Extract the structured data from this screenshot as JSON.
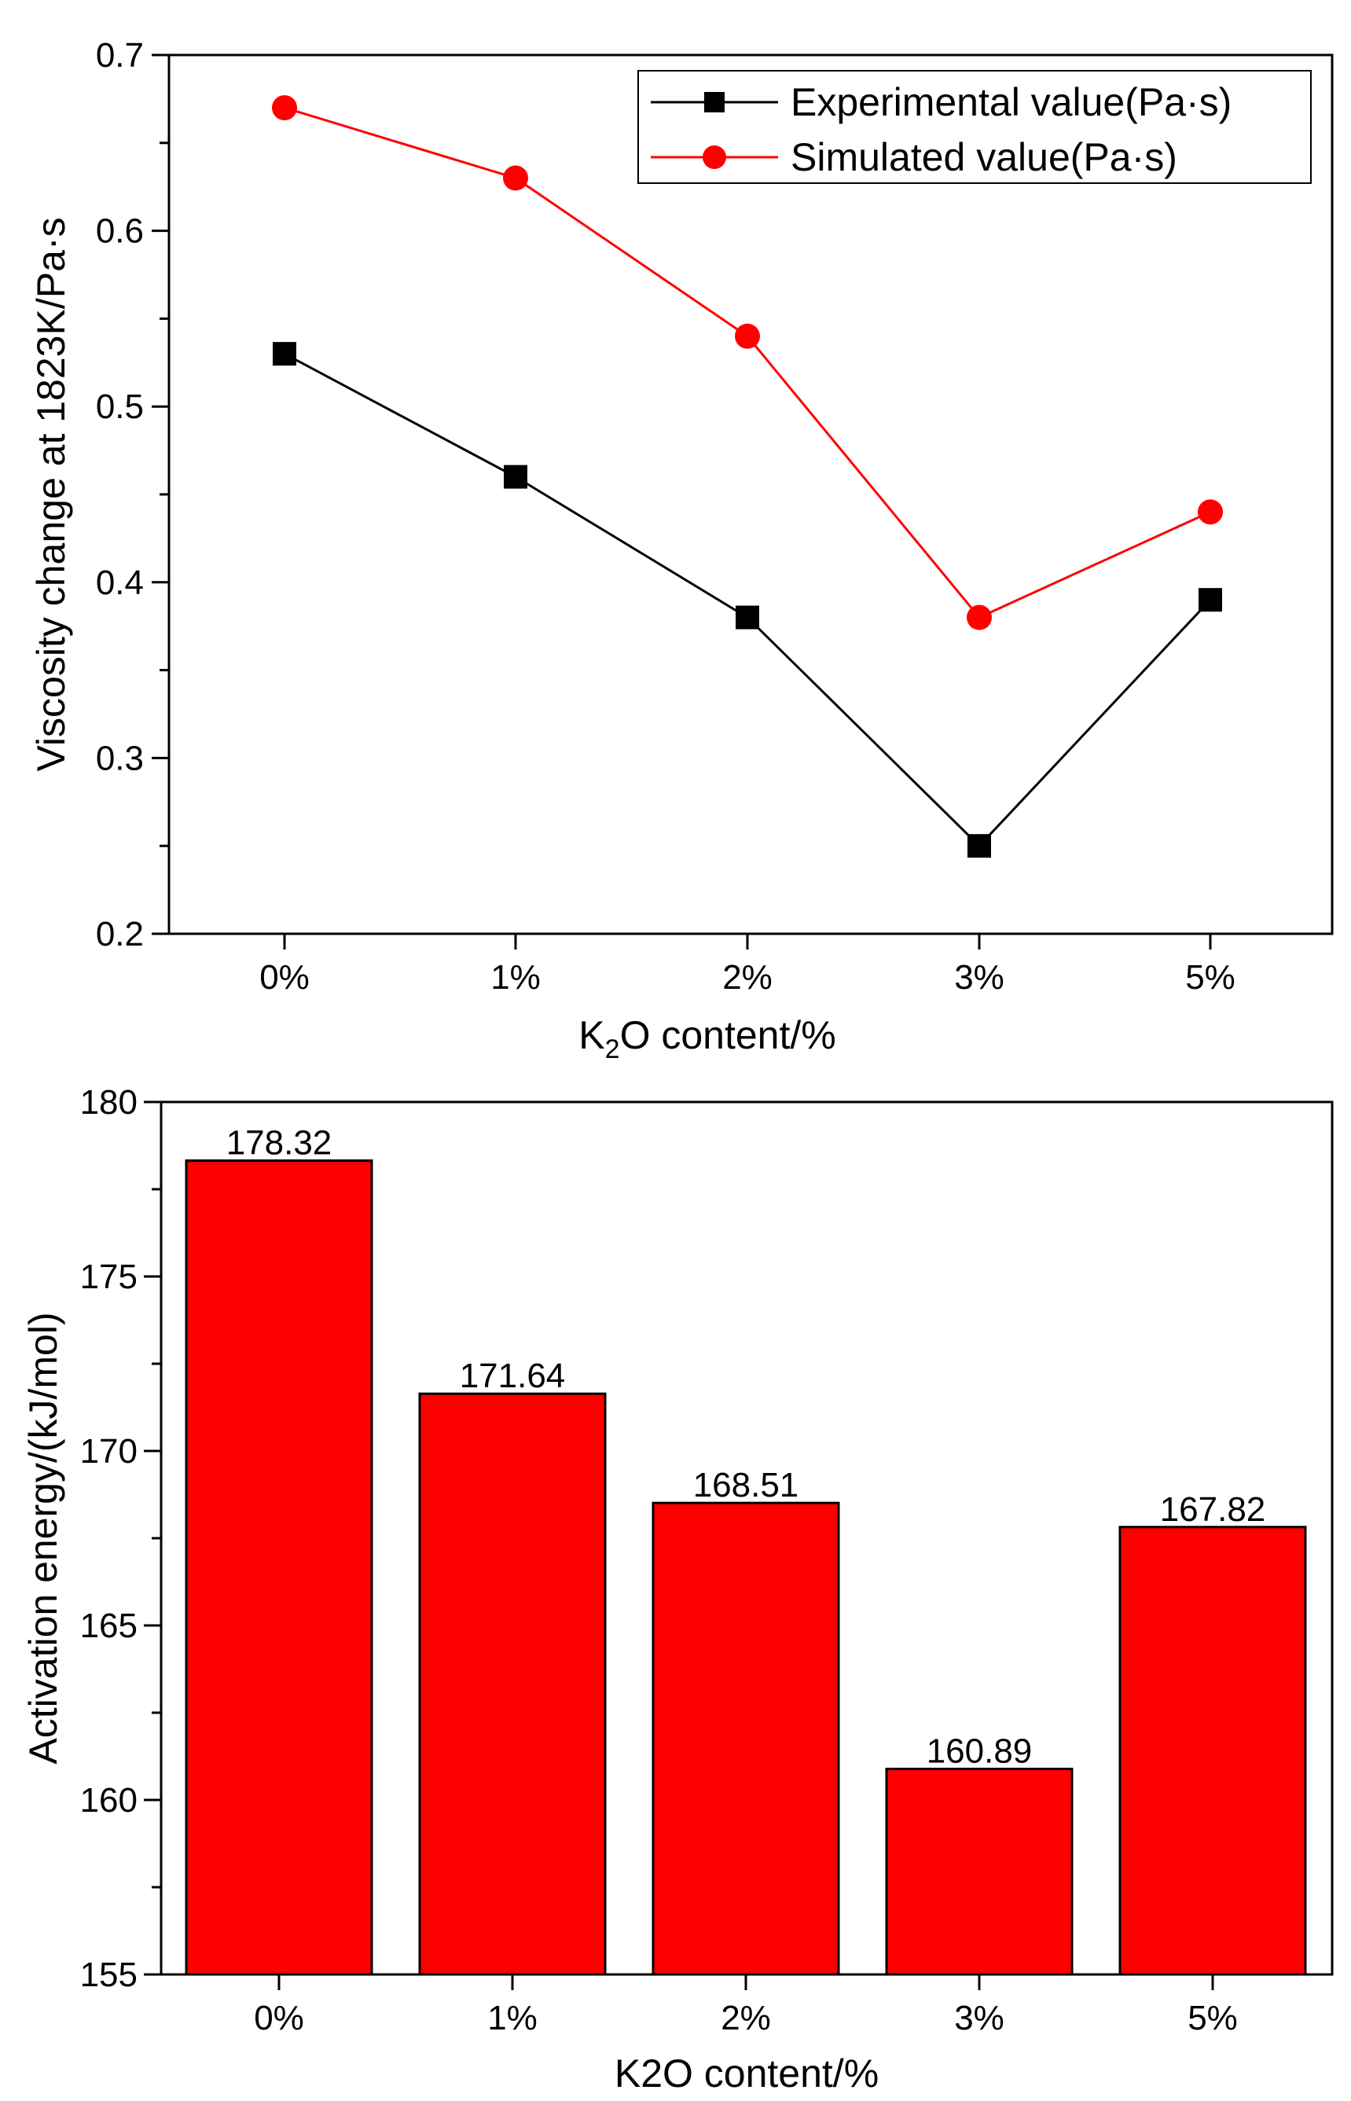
{
  "colors": {
    "experimental": "#000000",
    "simulated": "#ff0000",
    "bar_fill": "#ff0000",
    "bar_stroke": "#000000"
  },
  "chart_data": [
    {
      "type": "line",
      "categories": [
        "0%",
        "1%",
        "2%",
        "3%",
        "5%"
      ],
      "series": [
        {
          "name": "Experimental value(Pa·s)",
          "marker": "square",
          "values": [
            0.53,
            0.46,
            0.38,
            0.25,
            0.39
          ]
        },
        {
          "name": "Simulated value(Pa·s)",
          "marker": "circle",
          "values": [
            0.67,
            0.63,
            0.54,
            0.38,
            0.44
          ]
        }
      ],
      "title": "",
      "xlabel_main": "K",
      "xlabel_sub": "2",
      "xlabel_rest": "O content/%",
      "ylabel": "Viscosity change at 1823K/Pa·s",
      "ylim": [
        0.2,
        0.7
      ],
      "yticks": [
        "0.2",
        "0.3",
        "0.4",
        "0.5",
        "0.6",
        "0.7"
      ],
      "ytick_values": [
        0.2,
        0.3,
        0.4,
        0.5,
        0.6,
        0.7
      ],
      "legend_position": "top-right",
      "grid": false
    },
    {
      "type": "bar",
      "categories": [
        "0%",
        "1%",
        "2%",
        "3%",
        "5%"
      ],
      "values": [
        178.32,
        171.64,
        168.51,
        160.89,
        167.82
      ],
      "labels": [
        "178.32",
        "171.64",
        "168.51",
        "160.89",
        "167.82"
      ],
      "title": "",
      "xlabel": "K2O content/%",
      "ylabel": "Activation energy/(kJ/mol)",
      "ylim": [
        155,
        180
      ],
      "yticks": [
        "155",
        "160",
        "165",
        "170",
        "175",
        "180"
      ],
      "ytick_values": [
        155,
        160,
        165,
        170,
        175,
        180
      ],
      "grid": false
    }
  ]
}
